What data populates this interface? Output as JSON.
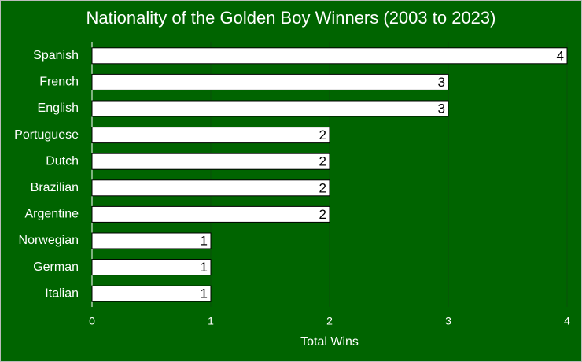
{
  "chart_data": {
    "type": "bar",
    "orientation": "horizontal",
    "title": "Nationality of the Golden Boy Winners (2003 to 2023)",
    "x_label": "Total Wins",
    "categories": [
      "Spanish",
      "French",
      "English",
      "Portuguese",
      "Dutch",
      "Brazilian",
      "Argentine",
      "Norwegian",
      "German",
      "Italian"
    ],
    "values": [
      4,
      3,
      3,
      2,
      2,
      2,
      2,
      1,
      1,
      1
    ],
    "color": "#ffffff",
    "xlim": [
      0,
      4
    ],
    "xticks": [
      0,
      1,
      2,
      3,
      4
    ],
    "grid": true
  }
}
